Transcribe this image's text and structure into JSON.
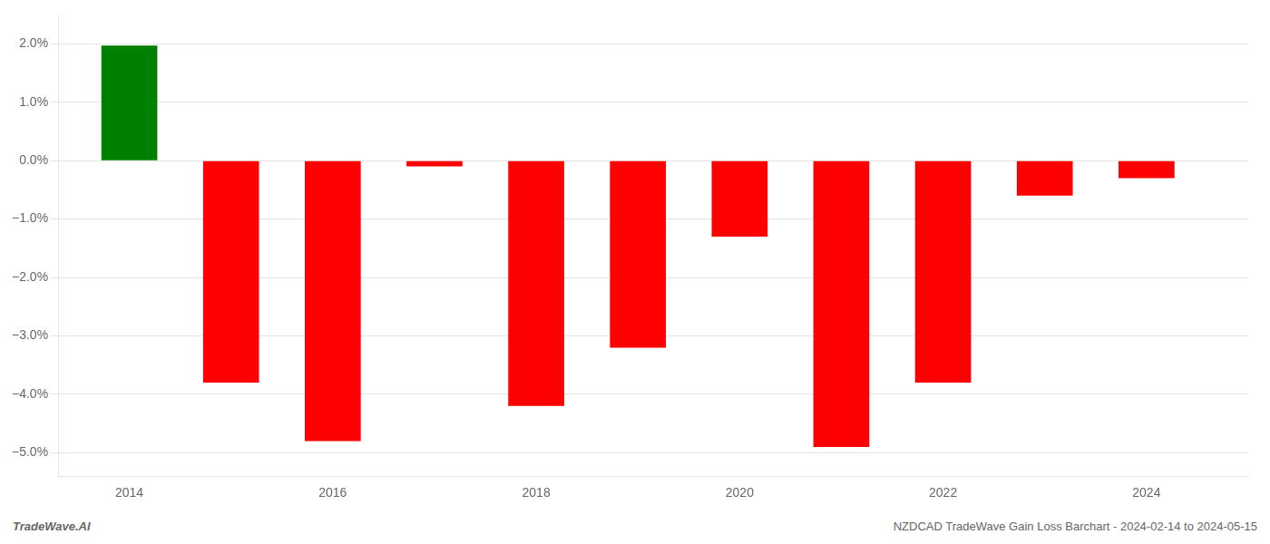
{
  "chart_data": {
    "type": "bar",
    "x": [
      2014,
      2015,
      2016,
      2017,
      2018,
      2019,
      2020,
      2021,
      2022,
      2023,
      2024
    ],
    "values": [
      0.0197,
      -0.038,
      -0.048,
      -0.001,
      -0.042,
      -0.032,
      -0.013,
      -0.049,
      -0.038,
      -0.006,
      -0.003
    ],
    "colors": [
      "#008000",
      "#ff0000",
      "#ff0000",
      "#ff0000",
      "#ff0000",
      "#ff0000",
      "#ff0000",
      "#ff0000",
      "#ff0000",
      "#ff0000",
      "#ff0000"
    ],
    "xlim": [
      2013.3,
      2025.0
    ],
    "xticks": [
      2014,
      2016,
      2018,
      2020,
      2022,
      2024
    ],
    "ylim": [
      -0.054,
      0.025
    ],
    "yticks": [
      {
        "value": -0.05,
        "label": "−5.0%"
      },
      {
        "value": -0.04,
        "label": "−4.0%"
      },
      {
        "value": -0.03,
        "label": "−3.0%"
      },
      {
        "value": -0.02,
        "label": "−2.0%"
      },
      {
        "value": -0.01,
        "label": "−1.0%"
      },
      {
        "value": 0.0,
        "label": "0.0%"
      },
      {
        "value": 0.01,
        "label": "1.0%"
      },
      {
        "value": 0.02,
        "label": "2.0%"
      }
    ],
    "grid": "y",
    "annotations": [
      "TradeWave.AI",
      "NZDCAD TradeWave Gain Loss Barchart - 2024-02-14 to 2024-05-15"
    ]
  }
}
